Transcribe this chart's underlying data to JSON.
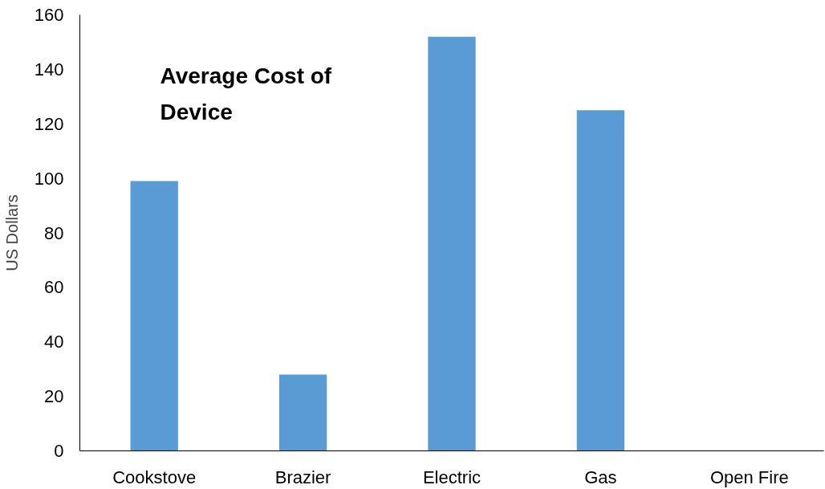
{
  "chart_data": {
    "type": "bar",
    "title": "Average Cost of Device",
    "ylabel": "US Dollars",
    "categories": [
      "Cookstove",
      "Brazier",
      "Electric",
      "Gas",
      "Open Fire"
    ],
    "values": [
      99,
      28,
      152,
      125,
      0
    ],
    "color": "#5b9bd5",
    "ylim": [
      0,
      160
    ],
    "yticks": [
      0,
      20,
      40,
      60,
      80,
      100,
      120,
      140,
      160
    ],
    "grid": false
  }
}
